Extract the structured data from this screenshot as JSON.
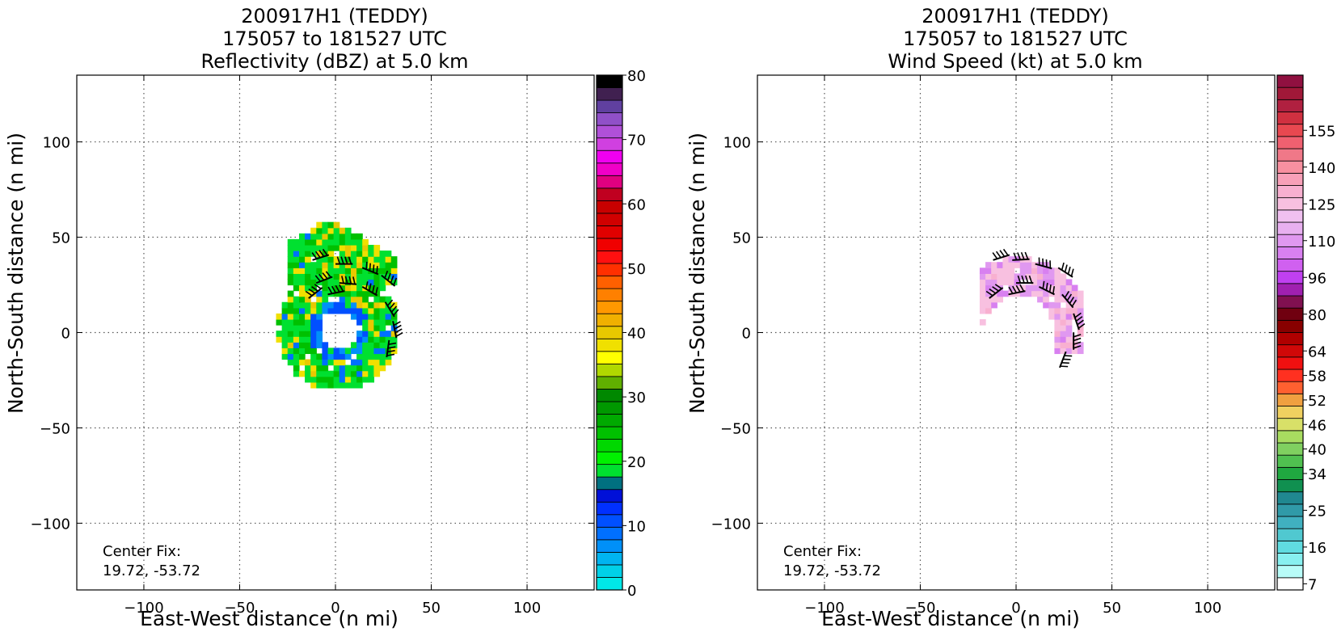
{
  "chart_data": [
    {
      "type": "heatmap",
      "title_lines": [
        "200917H1 (TEDDY)",
        "175057 to 181527 UTC",
        "Reflectivity (dBZ) at 5.0 km"
      ],
      "xlabel": "East-West distance (n mi)",
      "ylabel": "North-South distance (n mi)",
      "xlim": [
        -135,
        135
      ],
      "ylim": [
        -135,
        135
      ],
      "xticks": [
        -100,
        -50,
        0,
        50,
        100
      ],
      "yticks": [
        -100,
        -50,
        0,
        50,
        100
      ],
      "x_tick_labels": [
        "−100",
        "−50",
        "0",
        "50",
        "100"
      ],
      "y_tick_labels": [
        "−100",
        "−50",
        "0",
        "50",
        "100"
      ],
      "grid": true,
      "annotation": {
        "line1": "Center Fix:",
        "line2": "19.72, -53.72"
      },
      "colorbar": {
        "min": 0,
        "max": 80,
        "tick_values": [
          0,
          10,
          20,
          30,
          40,
          50,
          60,
          70,
          80
        ],
        "tick_labels": [
          "0",
          "10",
          "20",
          "30",
          "40",
          "50",
          "60",
          "70",
          "80"
        ],
        "colors": [
          "#00e8e8",
          "#00d0e8",
          "#00b4f0",
          "#0090f8",
          "#0070ff",
          "#0050ff",
          "#0030ff",
          "#0010d8",
          "#007080",
          "#00e030",
          "#00f000",
          "#00d800",
          "#00c000",
          "#00aa00",
          "#009800",
          "#008800",
          "#60b000",
          "#b0d800",
          "#ffff00",
          "#f0e000",
          "#e8c800",
          "#f0b000",
          "#ff9800",
          "#ff8000",
          "#ff6000",
          "#ff3000",
          "#ff1010",
          "#f00000",
          "#e00000",
          "#d00000",
          "#c80000",
          "#c00020",
          "#e00080",
          "#f000c8",
          "#f000f0",
          "#d040e0",
          "#b050d8",
          "#9050c8",
          "#6040a0",
          "#402050",
          "#000000"
        ]
      },
      "pattern": {
        "ring_inner_radius": 10,
        "ring_outer_radius": 32,
        "lobe_top": 58
      }
    },
    {
      "type": "heatmap",
      "title_lines": [
        "200917H1 (TEDDY)",
        "175057 to 181527 UTC",
        "Wind Speed (kt) at 5.0 km"
      ],
      "xlabel": "East-West distance (n mi)",
      "ylabel": "North-South distance (n mi)",
      "xlim": [
        -135,
        135
      ],
      "ylim": [
        -135,
        135
      ],
      "xticks": [
        -100,
        -50,
        0,
        50,
        100
      ],
      "yticks": [
        -100,
        -50,
        0,
        50,
        100
      ],
      "x_tick_labels": [
        "−100",
        "−50",
        "0",
        "50",
        "100"
      ],
      "y_tick_labels": [
        "−100",
        "−50",
        "0",
        "50",
        "100"
      ],
      "grid": true,
      "annotation": {
        "line1": "Center Fix:",
        "line2": "19.72, -53.72"
      },
      "colorbar": {
        "tick_labels": [
          "7",
          "16",
          "25",
          "34",
          "40",
          "46",
          "52",
          "58",
          "64",
          "80",
          "96",
          "110",
          "125",
          "140",
          "155"
        ],
        "tick_bin_index": [
          0,
          3,
          6,
          9,
          11,
          13,
          15,
          17,
          19,
          22,
          25,
          28,
          31,
          34,
          37
        ],
        "colors": [
          "#ffffff",
          "#b8fcf8",
          "#88f0f0",
          "#60dce0",
          "#50c8d0",
          "#40b0c0",
          "#309aa8",
          "#208890",
          "#109050",
          "#20a840",
          "#50c050",
          "#80d060",
          "#a8dc60",
          "#d8e068",
          "#f0d060",
          "#f0a040",
          "#ff6030",
          "#ff3020",
          "#f01010",
          "#d00808",
          "#b00000",
          "#880000",
          "#700010",
          "#801050",
          "#a020b0",
          "#c040f0",
          "#d060f0",
          "#d880f0",
          "#e098f0",
          "#e8b0f0",
          "#f0c0f0",
          "#f8c0e0",
          "#f8b0d0",
          "#f8a0b8",
          "#f890a0",
          "#f07888",
          "#f06070",
          "#e84850",
          "#d03040",
          "#b02040",
          "#a01838",
          "#901040"
        ]
      },
      "pattern": {
        "ring_inner_radius": 18,
        "ring_outer_radius": 38
      }
    }
  ]
}
